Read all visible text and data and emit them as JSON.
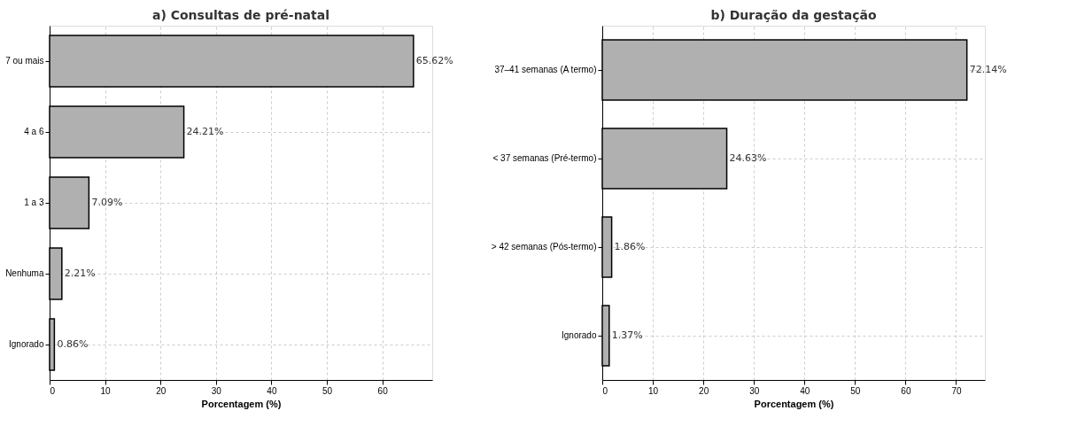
{
  "chart_data": [
    {
      "type": "bar",
      "orientation": "horizontal",
      "title": "a) Consultas de pré-natal",
      "xlabel": "Porcentagem (%)",
      "categories": [
        "7 ou mais",
        "4 a 6",
        "1 a 3",
        "Nenhuma",
        "Ignorado"
      ],
      "values": [
        65.62,
        24.21,
        7.09,
        2.21,
        0.86
      ],
      "value_labels": [
        "65.62%",
        "24.21%",
        "7.09%",
        "2.21%",
        "0.86%"
      ],
      "color": "#b0b0b0",
      "xlim": [
        0,
        69
      ],
      "xticks": [
        0,
        10,
        20,
        30,
        40,
        50,
        60
      ],
      "grid": true
    },
    {
      "type": "bar",
      "orientation": "horizontal",
      "title": "b) Duração da gestação",
      "xlabel": "Porcentagem (%)",
      "categories": [
        "37–41 semanas (A termo)",
        "< 37 semanas (Pré-termo)",
        "> 42 semanas (Pós-termo)",
        "Ignorado"
      ],
      "values": [
        72.14,
        24.63,
        1.86,
        1.37
      ],
      "value_labels": [
        "72.14%",
        "24.63%",
        "1.86%",
        "1.37%"
      ],
      "color": "#b0b0b0",
      "xlim": [
        0,
        75.7
      ],
      "xticks": [
        0,
        10,
        20,
        30,
        40,
        50,
        60,
        70
      ],
      "grid": true
    }
  ]
}
